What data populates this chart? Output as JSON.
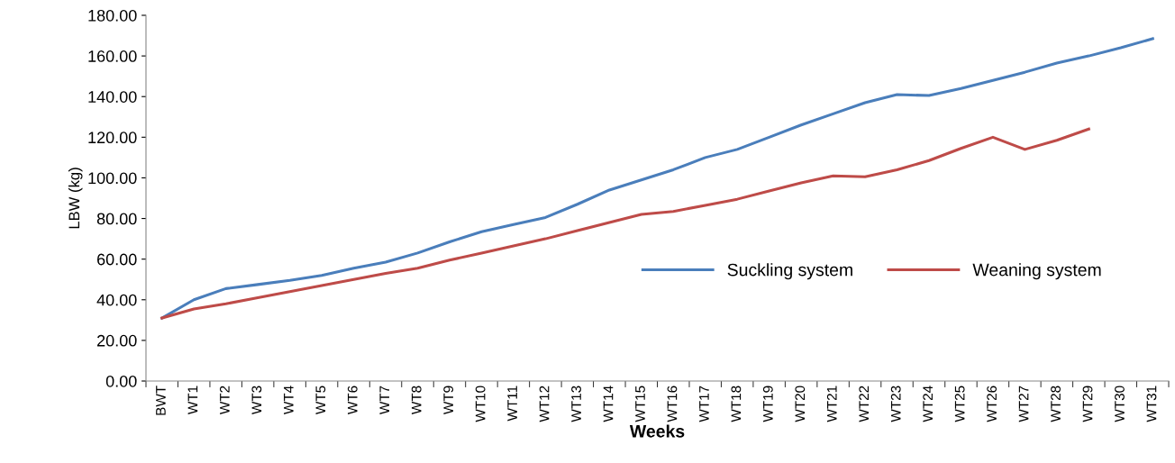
{
  "chart_data": {
    "type": "line",
    "xlabel": "Weeks",
    "ylabel": "LBW (kg)",
    "categories": [
      "BWT",
      "WT1",
      "WT2",
      "WT3",
      "WT4",
      "WT5",
      "WT6",
      "WT7",
      "WT8",
      "WT9",
      "WT10",
      "WT11",
      "WT12",
      "WT13",
      "WT14",
      "WT15",
      "WT16",
      "WT17",
      "WT18",
      "WT19",
      "WT20",
      "WT21",
      "WT22",
      "WT23",
      "WT24",
      "WT25",
      "WT26",
      "WT27",
      "WT28",
      "WT29",
      "WT30",
      "WT31"
    ],
    "series": [
      {
        "name": "Suckling system",
        "color": "#4a7ebb",
        "values": [
          31,
          40,
          45.5,
          47.5,
          49.5,
          52,
          55.5,
          58.5,
          63,
          68.5,
          73.5,
          77,
          80.5,
          87,
          94,
          99,
          104,
          110,
          114,
          120,
          126,
          131.5,
          137,
          141,
          140.5,
          144,
          148,
          152,
          156.5,
          160,
          164,
          168.5
        ]
      },
      {
        "name": "Weaning system",
        "color": "#be4b48",
        "values": [
          31,
          35.5,
          38,
          41,
          44,
          47,
          50,
          53,
          55.5,
          59.5,
          63,
          66.5,
          70,
          74,
          78,
          82,
          83.5,
          86.5,
          89.5,
          93.5,
          97.5,
          101,
          100.5,
          104,
          108.5,
          114.5,
          120,
          114,
          118.5,
          124,
          null,
          null
        ]
      }
    ],
    "ylim": [
      0,
      180
    ],
    "yticks": [
      {
        "value": 0,
        "label": "0.00"
      },
      {
        "value": 20,
        "label": "20.00"
      },
      {
        "value": 40,
        "label": "40.00"
      },
      {
        "value": 60,
        "label": "60.00"
      },
      {
        "value": 80,
        "label": "80.00"
      },
      {
        "value": 100,
        "label": "100.00"
      },
      {
        "value": 120,
        "label": "120.00"
      },
      {
        "value": 140,
        "label": "140.00"
      },
      {
        "value": 160,
        "label": "160.00"
      },
      {
        "value": 180,
        "label": "180.00"
      }
    ],
    "grid": false,
    "legend": "center right",
    "marker": "none",
    "line_style": "solid"
  }
}
